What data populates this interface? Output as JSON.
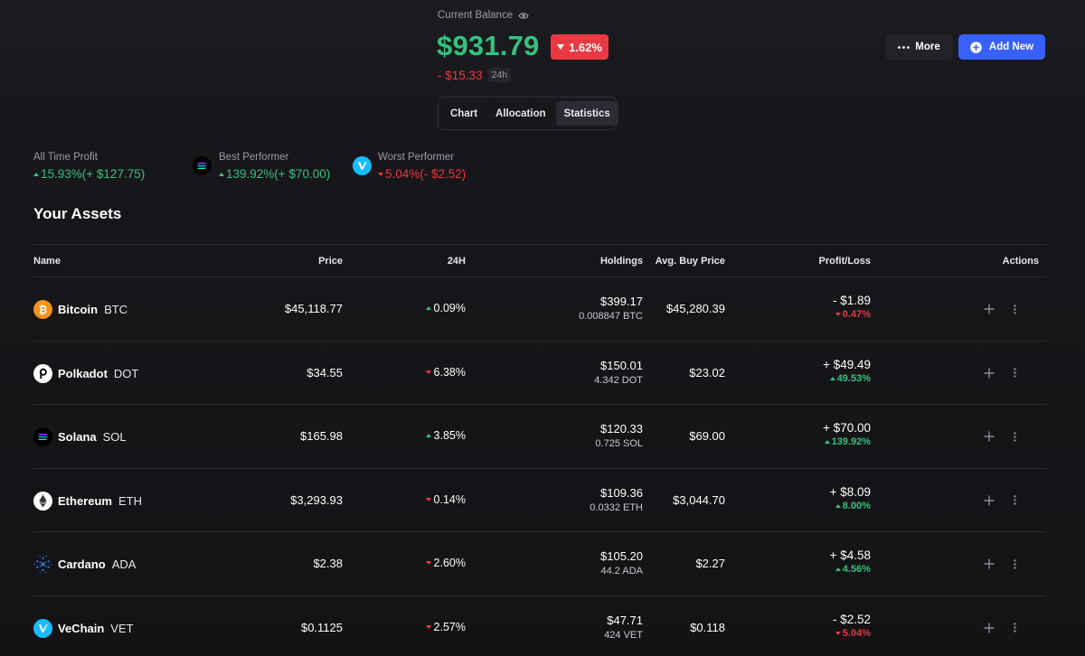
{
  "balance": {
    "label": "Current Balance",
    "value": "$931.79",
    "change_pct": "1.62%",
    "change_abs": "- $15.33",
    "period": "24h"
  },
  "tabs": [
    {
      "label": "Chart",
      "active": false
    },
    {
      "label": "Allocation",
      "active": false
    },
    {
      "label": "Statistics",
      "active": true
    }
  ],
  "header_actions": {
    "more_label": "More",
    "add_label": "Add New"
  },
  "stats": {
    "all_time": {
      "label": "All Time Profit",
      "value": "15.93%(+ $127.75)"
    },
    "best": {
      "label": "Best Performer",
      "value": "139.92%(+ $70.00)"
    },
    "worst": {
      "label": "Worst Performer",
      "value": "5.04%(- $2.52)"
    }
  },
  "assets": {
    "title": "Your Assets",
    "columns": {
      "name": "Name",
      "price": "Price",
      "change24h": "24H",
      "holdings": "Holdings",
      "avg_buy": "Avg. Buy Price",
      "pnl": "Profit/Loss",
      "actions": "Actions"
    },
    "rows": [
      {
        "name": "Bitcoin",
        "symbol": "BTC",
        "icon": "bitcoin-icon",
        "price": "$45,118.77",
        "change": "0.09%",
        "change_dir": "up",
        "holdings_value": "$399.17",
        "holdings_amount": "0.008847 BTC",
        "avg_buy": "$45,280.39",
        "pnl": "- $1.89",
        "pnl_pct": "0.47%",
        "pnl_dir": "down"
      },
      {
        "name": "Polkadot",
        "symbol": "DOT",
        "icon": "polkadot-icon",
        "price": "$34.55",
        "change": "6.38%",
        "change_dir": "down",
        "holdings_value": "$150.01",
        "holdings_amount": "4.342 DOT",
        "avg_buy": "$23.02",
        "pnl": "+ $49.49",
        "pnl_pct": "49.53%",
        "pnl_dir": "up"
      },
      {
        "name": "Solana",
        "symbol": "SOL",
        "icon": "solana-icon",
        "price": "$165.98",
        "change": "3.85%",
        "change_dir": "up",
        "holdings_value": "$120.33",
        "holdings_amount": "0.725 SOL",
        "avg_buy": "$69.00",
        "pnl": "+ $70.00",
        "pnl_pct": "139.92%",
        "pnl_dir": "up"
      },
      {
        "name": "Ethereum",
        "symbol": "ETH",
        "icon": "ethereum-icon",
        "price": "$3,293.93",
        "change": "0.14%",
        "change_dir": "down",
        "holdings_value": "$109.36",
        "holdings_amount": "0.0332 ETH",
        "avg_buy": "$3,044.70",
        "pnl": "+ $8.09",
        "pnl_pct": "8.00%",
        "pnl_dir": "up"
      },
      {
        "name": "Cardano",
        "symbol": "ADA",
        "icon": "cardano-icon",
        "price": "$2.38",
        "change": "2.60%",
        "change_dir": "down",
        "holdings_value": "$105.20",
        "holdings_amount": "44.2 ADA",
        "avg_buy": "$2.27",
        "pnl": "+ $4.58",
        "pnl_pct": "4.56%",
        "pnl_dir": "up"
      },
      {
        "name": "VeChain",
        "symbol": "VET",
        "icon": "vechain-icon",
        "price": "$0.1125",
        "change": "2.57%",
        "change_dir": "down",
        "holdings_value": "$47.71",
        "holdings_amount": "424 VET",
        "avg_buy": "$0.118",
        "pnl": "- $2.52",
        "pnl_pct": "5.04%",
        "pnl_dir": "down"
      }
    ]
  },
  "colors": {
    "up": "#35c17c",
    "down": "#ea3943",
    "accent": "#3861fb",
    "background": "#17171b"
  }
}
